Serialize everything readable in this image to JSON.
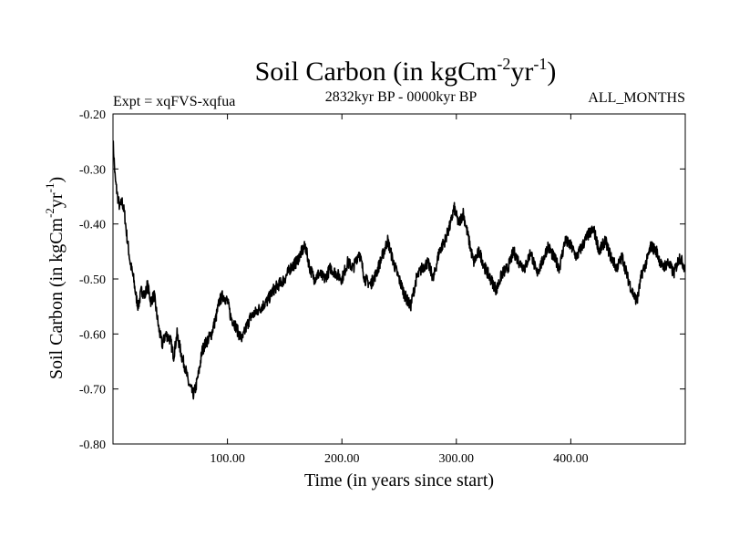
{
  "chart_data": {
    "type": "line",
    "title": "Soil Carbon (in kgCm",
    "title_sup1": "-2",
    "title_mid": "yr",
    "title_sup2": "-1",
    "title_end": ")",
    "subtitle_left": "Expt = xqFVS-xqfua",
    "subtitle_center": "2832kyr BP - 0000kyr BP",
    "subtitle_right": "ALL_MONTHS",
    "xlabel": "Time (in years since start)",
    "ylabel": "Soil Carbon (in kgCm",
    "ylabel_sup1": "-2",
    "ylabel_mid": "yr",
    "ylabel_sup2": "-1",
    "ylabel_end": ")",
    "xlim": [
      0,
      500
    ],
    "ylim": [
      -0.8,
      -0.2
    ],
    "xticks": [
      {
        "value": 100,
        "label": "100.00"
      },
      {
        "value": 200,
        "label": "200.00"
      },
      {
        "value": 300,
        "label": "300.00"
      },
      {
        "value": 400,
        "label": "400.00"
      }
    ],
    "yticks": [
      {
        "value": -0.8,
        "label": "-0.80"
      },
      {
        "value": -0.7,
        "label": "-0.70"
      },
      {
        "value": -0.6,
        "label": "-0.60"
      },
      {
        "value": -0.5,
        "label": "-0.50"
      },
      {
        "value": -0.4,
        "label": "-0.40"
      },
      {
        "value": -0.3,
        "label": "-0.30"
      },
      {
        "value": -0.2,
        "label": "-0.20"
      }
    ],
    "line_color": "#000000",
    "series": [
      {
        "name": "Soil Carbon",
        "x": [
          0,
          2,
          4,
          6,
          8,
          10,
          12,
          15,
          18,
          20,
          22,
          25,
          28,
          30,
          33,
          36,
          40,
          43,
          46,
          50,
          53,
          56,
          60,
          63,
          66,
          70,
          72,
          75,
          78,
          80,
          83,
          86,
          90,
          93,
          96,
          100,
          103,
          106,
          110,
          113,
          116,
          120,
          125,
          130,
          135,
          140,
          145,
          150,
          155,
          160,
          165,
          168,
          172,
          176,
          180,
          185,
          190,
          195,
          200,
          205,
          210,
          215,
          220,
          225,
          230,
          235,
          240,
          245,
          250,
          255,
          260,
          265,
          270,
          275,
          280,
          285,
          290,
          295,
          298,
          302,
          306,
          310,
          315,
          320,
          325,
          330,
          335,
          340,
          345,
          350,
          355,
          360,
          365,
          370,
          375,
          380,
          385,
          390,
          395,
          400,
          405,
          410,
          415,
          420,
          425,
          430,
          435,
          440,
          445,
          450,
          455,
          458,
          462,
          466,
          470,
          475,
          480,
          485,
          490,
          495,
          500
        ],
        "y": [
          -0.25,
          -0.32,
          -0.35,
          -0.37,
          -0.36,
          -0.38,
          -0.42,
          -0.47,
          -0.5,
          -0.53,
          -0.55,
          -0.52,
          -0.53,
          -0.51,
          -0.54,
          -0.53,
          -0.59,
          -0.62,
          -0.6,
          -0.61,
          -0.64,
          -0.6,
          -0.64,
          -0.66,
          -0.69,
          -0.71,
          -0.7,
          -0.67,
          -0.63,
          -0.62,
          -0.61,
          -0.6,
          -0.57,
          -0.54,
          -0.53,
          -0.54,
          -0.57,
          -0.58,
          -0.6,
          -0.61,
          -0.59,
          -0.57,
          -0.56,
          -0.55,
          -0.54,
          -0.52,
          -0.51,
          -0.5,
          -0.48,
          -0.47,
          -0.45,
          -0.44,
          -0.48,
          -0.5,
          -0.49,
          -0.5,
          -0.48,
          -0.49,
          -0.5,
          -0.47,
          -0.48,
          -0.45,
          -0.5,
          -0.51,
          -0.49,
          -0.46,
          -0.43,
          -0.47,
          -0.5,
          -0.53,
          -0.55,
          -0.5,
          -0.48,
          -0.47,
          -0.5,
          -0.45,
          -0.43,
          -0.4,
          -0.37,
          -0.4,
          -0.38,
          -0.42,
          -0.47,
          -0.45,
          -0.48,
          -0.5,
          -0.52,
          -0.49,
          -0.48,
          -0.45,
          -0.47,
          -0.48,
          -0.45,
          -0.49,
          -0.47,
          -0.44,
          -0.46,
          -0.48,
          -0.43,
          -0.44,
          -0.46,
          -0.44,
          -0.42,
          -0.41,
          -0.45,
          -0.43,
          -0.46,
          -0.48,
          -0.46,
          -0.5,
          -0.53,
          -0.54,
          -0.49,
          -0.47,
          -0.44,
          -0.45,
          -0.48,
          -0.47,
          -0.49,
          -0.46,
          -0.48
        ]
      }
    ]
  }
}
